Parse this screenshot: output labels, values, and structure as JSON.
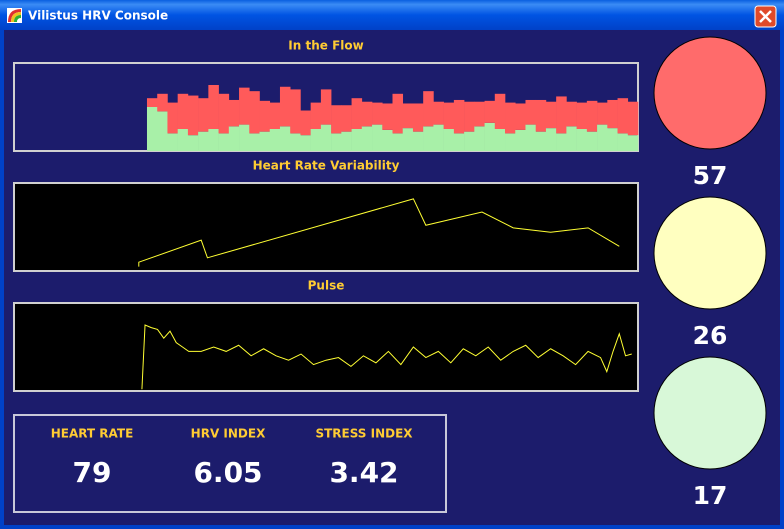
{
  "window": {
    "title": "Vilistus HRV Console"
  },
  "chart_data": [
    {
      "type": "bar",
      "title": "In the Flow",
      "stacked": true,
      "categories": [
        null,
        null,
        null,
        null,
        null,
        null,
        null,
        null,
        null,
        null,
        null,
        null,
        null,
        null,
        null,
        null,
        null,
        null,
        null,
        null,
        null,
        null,
        null,
        null,
        null,
        null,
        null,
        null,
        null,
        null,
        null,
        null,
        null,
        null,
        null,
        null,
        null,
        null,
        null,
        null,
        null,
        null,
        null,
        null,
        null,
        null,
        null,
        null,
        null,
        null,
        null,
        null,
        null,
        null,
        null,
        null,
        null,
        null,
        null,
        null,
        null
      ],
      "ylim": [
        0,
        100
      ],
      "series": [
        {
          "color": "#a8f0a8",
          "values": [
            null,
            null,
            null,
            null,
            null,
            null,
            null,
            null,
            null,
            null,
            null,
            null,
            null,
            50,
            45,
            20,
            25,
            18,
            22,
            25,
            20,
            28,
            30,
            20,
            22,
            25,
            28,
            20,
            18,
            25,
            30,
            20,
            22,
            25,
            28,
            30,
            24,
            20,
            26,
            22,
            28,
            30,
            25,
            20,
            22,
            28,
            32,
            25,
            20,
            24,
            30,
            22,
            26,
            20,
            28,
            25,
            22,
            30,
            26,
            20,
            18
          ]
        },
        {
          "color": "#ff5a5a",
          "values": [
            null,
            null,
            null,
            null,
            null,
            null,
            null,
            null,
            null,
            null,
            null,
            null,
            null,
            10,
            20,
            35,
            40,
            45,
            38,
            50,
            45,
            30,
            42,
            48,
            35,
            30,
            45,
            50,
            28,
            30,
            40,
            32,
            30,
            35,
            28,
            25,
            30,
            45,
            28,
            32,
            40,
            26,
            30,
            38,
            34,
            28,
            25,
            40,
            35,
            30,
            28,
            36,
            30,
            42,
            28,
            30,
            35,
            25,
            32,
            40,
            38
          ]
        }
      ]
    },
    {
      "type": "line",
      "title": "Heart Rate Variability",
      "xlim": [
        0,
        100
      ],
      "ylim": [
        0,
        100
      ],
      "x": [
        20,
        20,
        30,
        31,
        64,
        66,
        75,
        80,
        86,
        92,
        97
      ],
      "series": [
        {
          "color": "#ffff33",
          "values": [
            5,
            10,
            35,
            15,
            82,
            52,
            67,
            49,
            44,
            49,
            28
          ]
        }
      ]
    },
    {
      "type": "line",
      "title": "Pulse",
      "xlim": [
        0,
        100
      ],
      "ylim": [
        0,
        100
      ],
      "x": [
        20.5,
        21,
        22,
        23,
        24,
        25,
        26,
        27,
        28,
        30,
        32,
        34,
        36,
        38,
        40,
        42,
        44,
        46,
        48,
        50,
        52,
        54,
        56,
        58,
        60,
        62,
        64,
        66,
        68,
        70,
        72,
        74,
        76,
        78,
        80,
        82,
        84,
        86,
        88,
        90,
        92,
        94,
        95,
        96,
        97,
        98,
        99
      ],
      "series": [
        {
          "color": "#ffff33",
          "values": [
            2,
            75,
            72,
            70,
            60,
            68,
            55,
            50,
            45,
            45,
            50,
            45,
            52,
            40,
            48,
            40,
            35,
            42,
            30,
            35,
            38,
            28,
            40,
            32,
            45,
            30,
            50,
            38,
            45,
            32,
            48,
            40,
            50,
            35,
            45,
            52,
            38,
            48,
            40,
            30,
            45,
            38,
            22,
            45,
            65,
            40,
            42
          ]
        }
      ]
    }
  ],
  "indicators": [
    {
      "value": 57,
      "color": "#ff6b6b"
    },
    {
      "value": 26,
      "color": "#ffffc0"
    },
    {
      "value": 17,
      "color": "#d8f8d8"
    }
  ],
  "stats": [
    {
      "label": "HEART RATE",
      "value": 79
    },
    {
      "label": "HRV INDEX",
      "value": 6.05
    },
    {
      "label": "STRESS INDEX",
      "value": 3.42
    }
  ]
}
